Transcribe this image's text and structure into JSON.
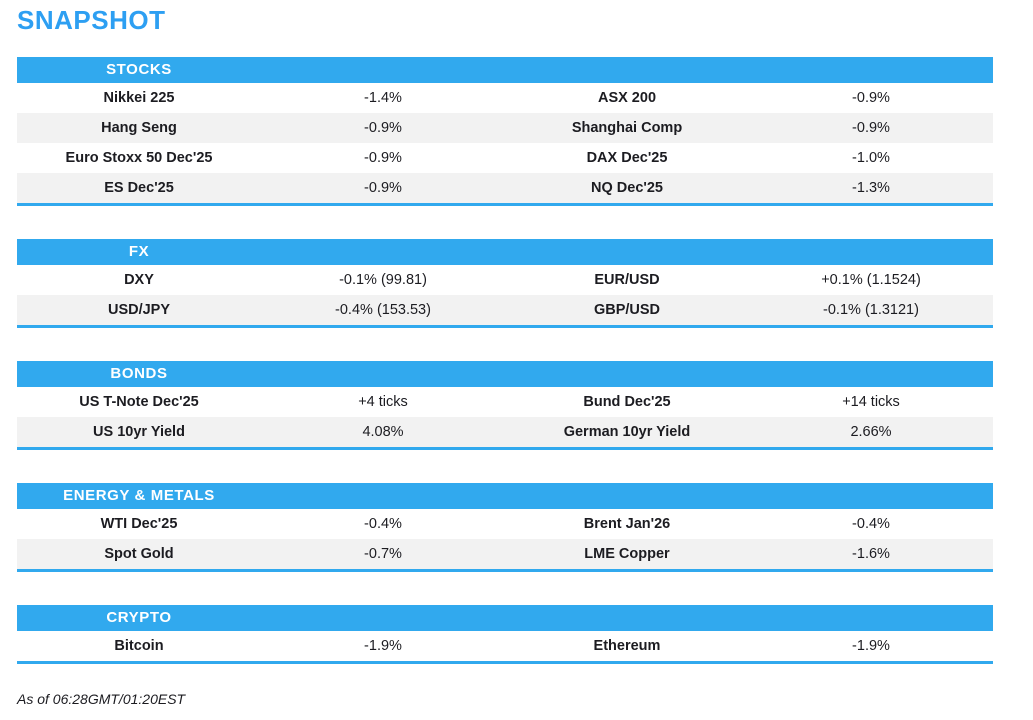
{
  "title": "SNAPSHOT",
  "footer": "As of 06:28GMT/01:20EST",
  "colors": {
    "title": "#2D9FF2",
    "accent": "#31A9EE",
    "stripe": "#F2F2F2",
    "text": "#1C1C21"
  },
  "sections": [
    {
      "title": "STOCKS",
      "rows": [
        {
          "label_left": "Nikkei 225",
          "value_left": "-1.4%",
          "label_right": "ASX 200",
          "value_right": "-0.9%"
        },
        {
          "label_left": "Hang Seng",
          "value_left": "-0.9%",
          "label_right": "Shanghai Comp",
          "value_right": "-0.9%"
        },
        {
          "label_left": "Euro Stoxx 50 Dec'25",
          "value_left": "-0.9%",
          "label_right": "DAX Dec'25",
          "value_right": "-1.0%"
        },
        {
          "label_left": "ES Dec'25",
          "value_left": "-0.9%",
          "label_right": "NQ Dec'25",
          "value_right": "-1.3%"
        }
      ]
    },
    {
      "title": "FX",
      "rows": [
        {
          "label_left": "DXY",
          "value_left": "-0.1% (99.81)",
          "label_right": "EUR/USD",
          "value_right": "+0.1% (1.1524)"
        },
        {
          "label_left": "USD/JPY",
          "value_left": "-0.4% (153.53)",
          "label_right": "GBP/USD",
          "value_right": "-0.1% (1.3121)"
        }
      ]
    },
    {
      "title": "BONDS",
      "rows": [
        {
          "label_left": "US T-Note Dec'25",
          "value_left": "+4 ticks",
          "label_right": "Bund Dec'25",
          "value_right": "+14 ticks"
        },
        {
          "label_left": "US 10yr Yield",
          "value_left": "4.08%",
          "label_right": "German 10yr Yield",
          "value_right": "2.66%"
        }
      ]
    },
    {
      "title": "ENERGY & METALS",
      "rows": [
        {
          "label_left": "WTI Dec'25",
          "value_left": "-0.4%",
          "label_right": "Brent Jan'26",
          "value_right": "-0.4%"
        },
        {
          "label_left": "Spot Gold",
          "value_left": "-0.7%",
          "label_right": "LME Copper",
          "value_right": "-1.6%"
        }
      ]
    },
    {
      "title": "CRYPTO",
      "rows": [
        {
          "label_left": "Bitcoin",
          "value_left": "-1.9%",
          "label_right": "Ethereum",
          "value_right": "-1.9%"
        }
      ]
    }
  ]
}
